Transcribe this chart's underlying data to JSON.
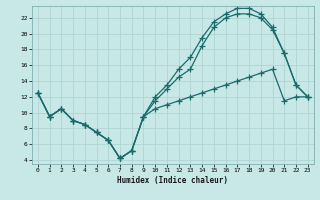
{
  "title": "",
  "xlabel": "Humidex (Indice chaleur)",
  "ylabel": "",
  "bg_color": "#c8e8e8",
  "grid_color": "#b0d4d4",
  "line_color": "#1a6b6b",
  "marker": "+",
  "markersize": 4,
  "linewidth": 0.9,
  "xlim": [
    -0.5,
    23.5
  ],
  "ylim": [
    3.5,
    23.5
  ],
  "xticks": [
    0,
    1,
    2,
    3,
    4,
    5,
    6,
    7,
    8,
    9,
    10,
    11,
    12,
    13,
    14,
    15,
    16,
    17,
    18,
    19,
    20,
    21,
    22,
    23
  ],
  "yticks": [
    4,
    6,
    8,
    10,
    12,
    14,
    16,
    18,
    20,
    22
  ],
  "line1_x": [
    0,
    1,
    2,
    3,
    4,
    5,
    6,
    7,
    8,
    9,
    10,
    11,
    12,
    13,
    14,
    15,
    16,
    17,
    18,
    19,
    20,
    21,
    22,
    23
  ],
  "line1_y": [
    12.5,
    9.5,
    10.5,
    9.0,
    8.5,
    7.5,
    6.5,
    4.2,
    5.2,
    9.5,
    10.5,
    11.0,
    11.5,
    12.0,
    12.5,
    13.0,
    13.5,
    14.0,
    14.5,
    15.0,
    15.5,
    11.5,
    12.0,
    12.0
  ],
  "line2_x": [
    0,
    1,
    2,
    3,
    4,
    5,
    6,
    7,
    8,
    9,
    10,
    11,
    12,
    13,
    14,
    15,
    16,
    17,
    18,
    19,
    20,
    21,
    22,
    23
  ],
  "line2_y": [
    12.5,
    9.5,
    10.5,
    9.0,
    8.5,
    7.5,
    6.5,
    4.2,
    5.2,
    9.5,
    12.0,
    13.5,
    15.5,
    17.0,
    19.5,
    21.5,
    22.5,
    23.2,
    23.2,
    22.5,
    20.8,
    17.5,
    13.5,
    12.0
  ],
  "line3_x": [
    0,
    1,
    2,
    3,
    4,
    5,
    6,
    7,
    8,
    9,
    10,
    11,
    12,
    13,
    14,
    15,
    16,
    17,
    18,
    19,
    20,
    21,
    22,
    23
  ],
  "line3_y": [
    12.5,
    9.5,
    10.5,
    9.0,
    8.5,
    7.5,
    6.5,
    4.2,
    5.2,
    9.5,
    11.5,
    13.0,
    14.5,
    15.5,
    18.5,
    20.8,
    22.0,
    22.5,
    22.5,
    22.0,
    20.5,
    17.5,
    13.5,
    12.0
  ]
}
